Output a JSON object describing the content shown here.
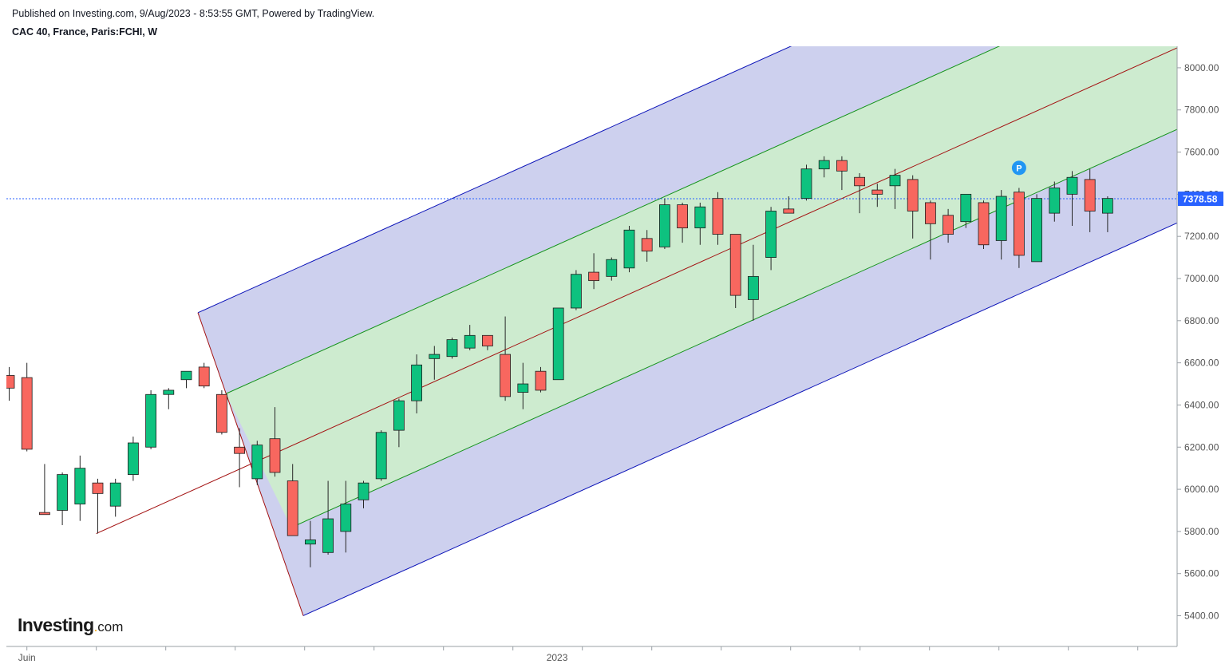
{
  "header": {
    "published": "Published on Investing.com, 9/Aug/2023 - 8:53:55 GMT, Powered by TradingView.",
    "title": "CAC 40, France, Paris:FCHI, W"
  },
  "logo": {
    "brand": "Investing",
    "domain": "com"
  },
  "colors": {
    "up": "#0ec27f",
    "down": "#f8675f",
    "wick": "#262626",
    "channel_outer": "#0a12b8",
    "channel_inner": "#14931a",
    "median": "#a31212",
    "outer_fill": "#cdd0ee",
    "inner_fill": "#cdebcf",
    "last_price": "#2962ff",
    "marker": "#2196f3"
  },
  "chart_data": {
    "type": "candlestick",
    "title": "CAC 40, France, Paris:FCHI, W",
    "y_ticks": [
      8000,
      7800,
      7600,
      7400,
      7200,
      7000,
      6800,
      6600,
      6400,
      6200,
      6000,
      5800,
      5600,
      5400
    ],
    "y_tick_labels": [
      "8000.00",
      "7800.00",
      "7600.00",
      "7400.00",
      "7200.00",
      "7000.00",
      "6800.00",
      "6600.00",
      "6400.00",
      "6200.00",
      "6000.00",
      "5800.00",
      "5600.00",
      "5400.00"
    ],
    "x_labels": [
      {
        "label": "Juin",
        "index": 1
      },
      {
        "label": "2023",
        "index": 31
      }
    ],
    "last_price": 7378.58,
    "last_price_label": "7378.58",
    "marker": {
      "label": "P",
      "index": 57,
      "price": 7525
    },
    "candles": [
      [
        6540,
        6580,
        6420,
        6480
      ],
      [
        6530,
        6600,
        6180,
        6190
      ],
      [
        5890,
        6120,
        5880,
        5880
      ],
      [
        5900,
        6080,
        5830,
        6070
      ],
      [
        5930,
        6160,
        5850,
        6100
      ],
      [
        6030,
        6050,
        5790,
        5980
      ],
      [
        5920,
        6050,
        5870,
        6030
      ],
      [
        6070,
        6250,
        6040,
        6220
      ],
      [
        6200,
        6470,
        6190,
        6450
      ],
      [
        6450,
        6480,
        6380,
        6470
      ],
      [
        6520,
        6560,
        6480,
        6560
      ],
      [
        6580,
        6600,
        6480,
        6490
      ],
      [
        6450,
        6470,
        6260,
        6270
      ],
      [
        6200,
        6290,
        6010,
        6170
      ],
      [
        6050,
        6230,
        6020,
        6210
      ],
      [
        6240,
        6390,
        6060,
        6080
      ],
      [
        6040,
        6120,
        5780,
        5780
      ],
      [
        5740,
        5850,
        5630,
        5760
      ],
      [
        5700,
        6040,
        5690,
        5860
      ],
      [
        5800,
        6040,
        5700,
        5930
      ],
      [
        5950,
        6040,
        5910,
        6030
      ],
      [
        6050,
        6280,
        6040,
        6270
      ],
      [
        6280,
        6430,
        6200,
        6420
      ],
      [
        6420,
        6640,
        6360,
        6590
      ],
      [
        6620,
        6680,
        6520,
        6640
      ],
      [
        6630,
        6720,
        6620,
        6710
      ],
      [
        6670,
        6780,
        6660,
        6730
      ],
      [
        6730,
        6730,
        6660,
        6680
      ],
      [
        6640,
        6820,
        6420,
        6440
      ],
      [
        6460,
        6600,
        6380,
        6500
      ],
      [
        6560,
        6580,
        6460,
        6470
      ],
      [
        6520,
        6860,
        6520,
        6860
      ],
      [
        6860,
        7040,
        6850,
        7020
      ],
      [
        7030,
        7120,
        6950,
        6990
      ],
      [
        7010,
        7100,
        6990,
        7090
      ],
      [
        7050,
        7250,
        7030,
        7230
      ],
      [
        7190,
        7230,
        7080,
        7130
      ],
      [
        7150,
        7380,
        7140,
        7350
      ],
      [
        7350,
        7360,
        7170,
        7240
      ],
      [
        7240,
        7360,
        7160,
        7340
      ],
      [
        7380,
        7410,
        7160,
        7210
      ],
      [
        7210,
        7210,
        6860,
        6920
      ],
      [
        6900,
        7160,
        6800,
        7010
      ],
      [
        7100,
        7340,
        7040,
        7320
      ],
      [
        7330,
        7390,
        7310,
        7310
      ],
      [
        7380,
        7540,
        7370,
        7520
      ],
      [
        7520,
        7580,
        7480,
        7560
      ],
      [
        7560,
        7580,
        7420,
        7510
      ],
      [
        7480,
        7500,
        7310,
        7440
      ],
      [
        7420,
        7450,
        7340,
        7400
      ],
      [
        7440,
        7520,
        7330,
        7490
      ],
      [
        7470,
        7490,
        7190,
        7320
      ],
      [
        7360,
        7370,
        7090,
        7260
      ],
      [
        7300,
        7330,
        7170,
        7210
      ],
      [
        7270,
        7400,
        7240,
        7400
      ],
      [
        7360,
        7370,
        7140,
        7160
      ],
      [
        7180,
        7420,
        7090,
        7390
      ],
      [
        7410,
        7430,
        7050,
        7110
      ],
      [
        7080,
        7400,
        7080,
        7380
      ],
      [
        7310,
        7460,
        7270,
        7430
      ],
      [
        7400,
        7510,
        7250,
        7480
      ],
      [
        7470,
        7520,
        7220,
        7320
      ],
      [
        7310,
        7390,
        7220,
        7380
      ]
    ]
  }
}
